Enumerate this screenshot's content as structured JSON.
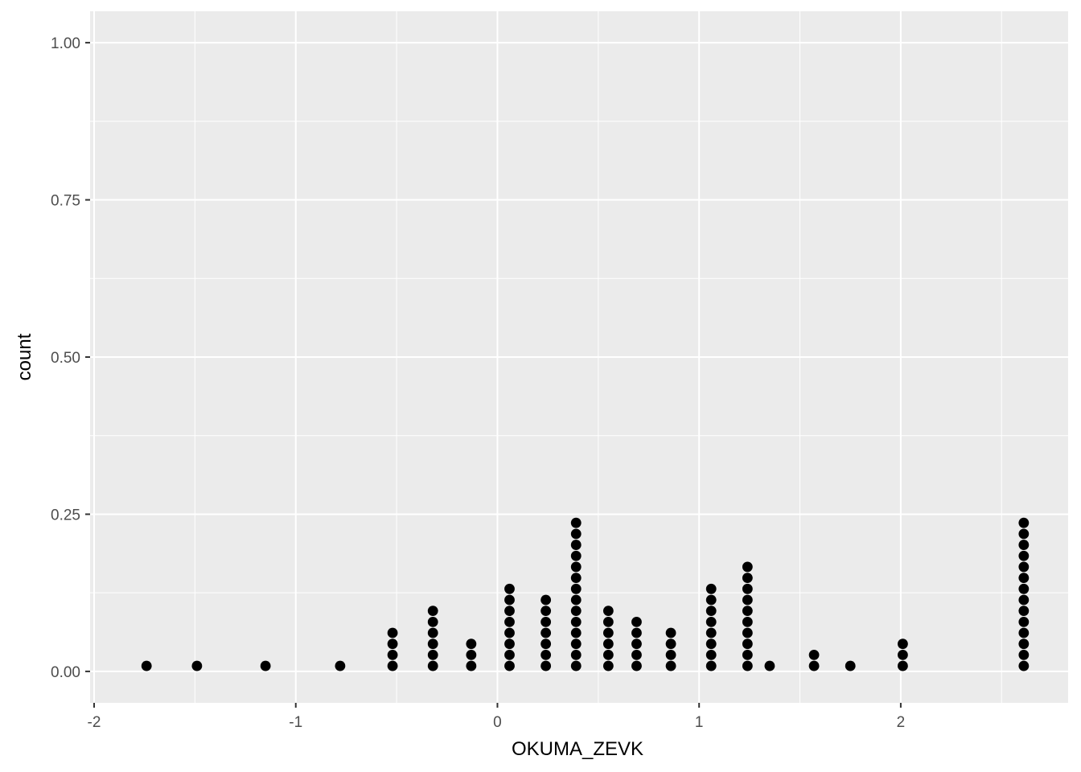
{
  "chart_data": {
    "type": "dotplot",
    "title": "",
    "xlabel": "OKUMA_ZEVK",
    "ylabel": "count",
    "xlim": [
      -2.02,
      2.83
    ],
    "ylim": [
      -0.05,
      1.05
    ],
    "x_ticks": [
      -2,
      -1,
      0,
      1,
      2
    ],
    "x_tick_labels": [
      "-2",
      "-1",
      "0",
      "1",
      "2"
    ],
    "y_ticks": [
      0,
      0.25,
      0.5,
      0.75,
      1
    ],
    "y_tick_labels": [
      "0.00",
      "0.25",
      "0.50",
      "0.75",
      "1.00"
    ],
    "grid": true,
    "legend": "none",
    "colors": {
      "panel": "#ebebeb",
      "grid": "#ffffff",
      "dot": "#000000",
      "tick": "#333333"
    },
    "stacks": [
      {
        "x": -1.74,
        "count": 1
      },
      {
        "x": -1.49,
        "count": 1
      },
      {
        "x": -1.15,
        "count": 1
      },
      {
        "x": -0.78,
        "count": 1
      },
      {
        "x": -0.52,
        "count": 4
      },
      {
        "x": -0.32,
        "count": 6
      },
      {
        "x": -0.13,
        "count": 3
      },
      {
        "x": 0.06,
        "count": 8
      },
      {
        "x": 0.24,
        "count": 7
      },
      {
        "x": 0.39,
        "count": 14
      },
      {
        "x": 0.55,
        "count": 6
      },
      {
        "x": 0.69,
        "count": 5
      },
      {
        "x": 0.86,
        "count": 4
      },
      {
        "x": 1.06,
        "count": 8
      },
      {
        "x": 1.24,
        "count": 10
      },
      {
        "x": 1.35,
        "count": 1
      },
      {
        "x": 1.57,
        "count": 2
      },
      {
        "x": 1.75,
        "count": 1
      },
      {
        "x": 2.01,
        "count": 3
      },
      {
        "x": 2.61,
        "count": 14
      }
    ],
    "dot_step": 0.0175
  }
}
